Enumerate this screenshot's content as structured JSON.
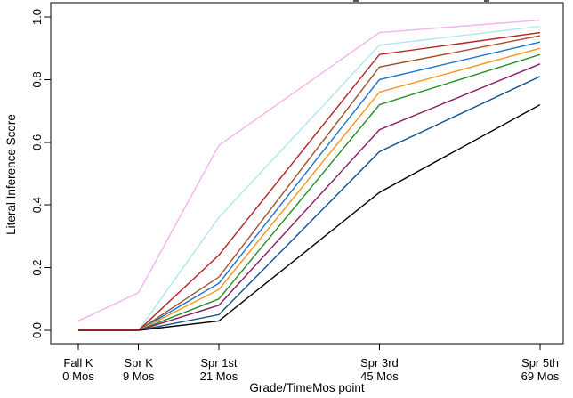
{
  "figure": {
    "xlabel": "Grade/TimeMos point",
    "ylabel": "Literal Inference Score"
  },
  "chart_data": {
    "type": "line",
    "xlabel": "Grade/TimeMos point",
    "ylabel": "Literal Inference Score",
    "ylim": [
      0,
      1
    ],
    "grid": false,
    "legend": "none",
    "y_ticks": [
      "0.0",
      "0.2",
      "0.4",
      "0.6",
      "0.8",
      "1.0"
    ],
    "x_ticks": [
      {
        "grade": "Fall K",
        "months_label": "0 Mos",
        "months": 0
      },
      {
        "grade": "Spr K",
        "months_label": "9 Mos",
        "months": 9
      },
      {
        "grade": "Spr 1st",
        "months_label": "21 Mos",
        "months": 21
      },
      {
        "grade": "Spr 3rd",
        "months_label": "45 Mos",
        "months": 45
      },
      {
        "grade": "Spr 5th",
        "months_label": "69 Mos",
        "months": 69
      }
    ],
    "x_months": [
      0,
      9,
      21,
      45,
      69
    ],
    "series": [
      {
        "name": "violet",
        "color": "#F4B3EE",
        "z": 0,
        "values": [
          0.03,
          0.12,
          0.59,
          0.95,
          0.99
        ]
      },
      {
        "name": "pale-turquoise",
        "color": "#AEE8EE",
        "z": 0,
        "values": [
          0.0,
          0.0,
          0.36,
          0.91,
          0.97
        ]
      },
      {
        "name": "dark-red",
        "color": "#B22222",
        "z": 1,
        "values": [
          0.0,
          0.0,
          0.24,
          0.88,
          0.95
        ]
      },
      {
        "name": "sienna-brown",
        "color": "#A0522D",
        "z": 0,
        "values": [
          0.0,
          0.0,
          0.17,
          0.84,
          0.94
        ]
      },
      {
        "name": "blue",
        "color": "#1874CD",
        "z": 0,
        "values": [
          0.0,
          0.0,
          0.15,
          0.8,
          0.92
        ]
      },
      {
        "name": "orange",
        "color": "#FA9419",
        "z": 0,
        "values": [
          0.0,
          0.0,
          0.13,
          0.76,
          0.9
        ]
      },
      {
        "name": "green",
        "color": "#228B22",
        "z": 0,
        "values": [
          0.0,
          0.0,
          0.1,
          0.72,
          0.88
        ]
      },
      {
        "name": "dark-magenta",
        "color": "#8B1C62",
        "z": 0,
        "values": [
          0.0,
          0.0,
          0.08,
          0.64,
          0.85
        ]
      },
      {
        "name": "steel-blue-dark",
        "color": "#104E8B",
        "z": 0,
        "values": [
          0.0,
          0.0,
          0.05,
          0.57,
          0.81
        ]
      },
      {
        "name": "black",
        "color": "#000000",
        "z": 0,
        "values": [
          0.0,
          0.0,
          0.03,
          0.44,
          0.72
        ]
      }
    ]
  }
}
